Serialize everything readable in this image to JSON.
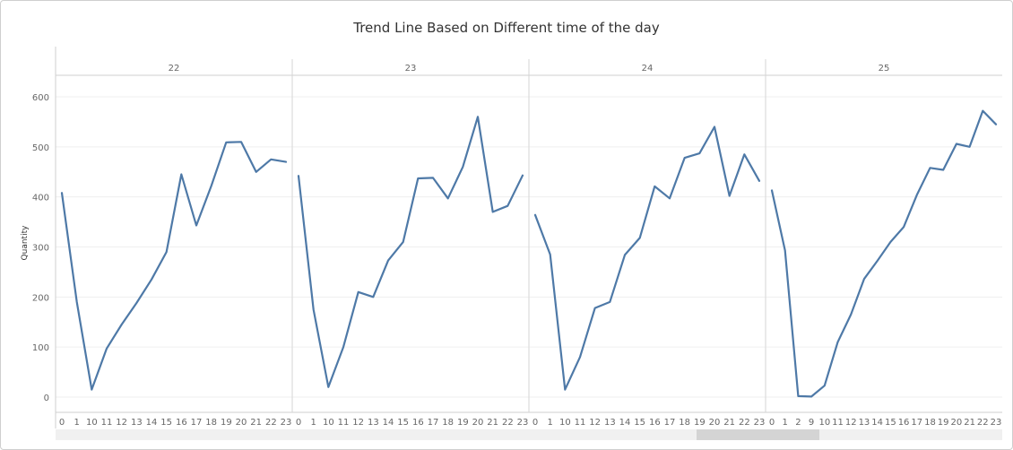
{
  "title": "Trend Line Based on Different time of the day",
  "chart_data": {
    "type": "line",
    "title": "Trend Line Based on Different time of the day",
    "ylabel": "Quantity",
    "xlabel": "",
    "ylim": [
      -35,
      640
    ],
    "yticks": [
      0,
      100,
      200,
      300,
      400,
      500,
      600
    ],
    "grid": true,
    "line_color": "#4e79a7",
    "panels": [
      {
        "label": "22",
        "x": [
          "0",
          "1",
          "10",
          "11",
          "12",
          "13",
          "14",
          "15",
          "16",
          "17",
          "18",
          "19",
          "20",
          "21",
          "22",
          "23"
        ],
        "values": [
          408,
          190,
          15,
          97,
          145,
          188,
          235,
          290,
          445,
          343,
          422,
          509,
          510,
          450,
          475,
          470
        ]
      },
      {
        "label": "23",
        "x": [
          "0",
          "1",
          "10",
          "11",
          "12",
          "13",
          "14",
          "15",
          "16",
          "17",
          "18",
          "19",
          "20",
          "21",
          "22",
          "23"
        ],
        "values": [
          442,
          175,
          20,
          100,
          210,
          200,
          273,
          310,
          437,
          438,
          397,
          460,
          560,
          370,
          382,
          443
        ]
      },
      {
        "label": "24",
        "x": [
          "0",
          "1",
          "10",
          "11",
          "12",
          "13",
          "14",
          "15",
          "16",
          "17",
          "18",
          "19",
          "20",
          "21",
          "22",
          "23"
        ],
        "values": [
          364,
          285,
          15,
          80,
          178,
          190,
          284,
          318,
          421,
          397,
          478,
          487,
          540,
          402,
          485,
          432
        ]
      },
      {
        "label": "25",
        "x": [
          "0",
          "1",
          "2",
          "9",
          "10",
          "11",
          "12",
          "13",
          "14",
          "15",
          "16",
          "17",
          "18",
          "19",
          "20",
          "21",
          "22",
          "23"
        ],
        "values": [
          413,
          293,
          2,
          1,
          23,
          110,
          165,
          236,
          272,
          310,
          340,
          404,
          458,
          454,
          506,
          500,
          572,
          545
        ]
      }
    ]
  }
}
